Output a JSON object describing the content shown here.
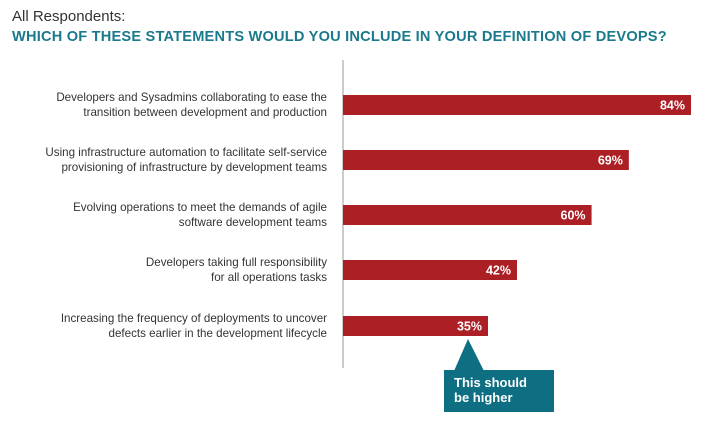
{
  "header": {
    "subtitle": "All Respondents:",
    "title": "WHICH OF THESE STATEMENTS WOULD YOU INCLUDE IN YOUR DEFINITION OF DEVOPS?"
  },
  "colors": {
    "bar": "#ac1f25",
    "title": "#1a7a8c",
    "callout": "#0e6f82",
    "axis": "#999999"
  },
  "chart_data": {
    "type": "bar",
    "orientation": "horizontal",
    "title": "WHICH OF THESE STATEMENTS WOULD YOU INCLUDE IN YOUR DEFINITION OF DEVOPS?",
    "subtitle": "All Respondents:",
    "categories": [
      [
        "Developers and Sysadmins collaborating to ease the",
        "transition between development and production"
      ],
      [
        "Using infrastructure automation to facilitate self-service",
        "provisioning of infrastructure by development teams"
      ],
      [
        "Evolving operations to meet the demands of agile",
        "software development teams"
      ],
      [
        "Developers taking full responsibility",
        "for all operations tasks"
      ],
      [
        "Increasing the frequency of deployments to uncover",
        "defects earlier in the development lifecycle"
      ]
    ],
    "values": [
      84,
      69,
      60,
      42,
      35
    ],
    "value_labels": [
      "84%",
      "69%",
      "60%",
      "42%",
      "35%"
    ],
    "xlim": [
      0,
      100
    ],
    "grid": false,
    "legend": "none",
    "annotation": {
      "text": [
        "This should",
        "be higher"
      ],
      "target_index": 4
    }
  }
}
